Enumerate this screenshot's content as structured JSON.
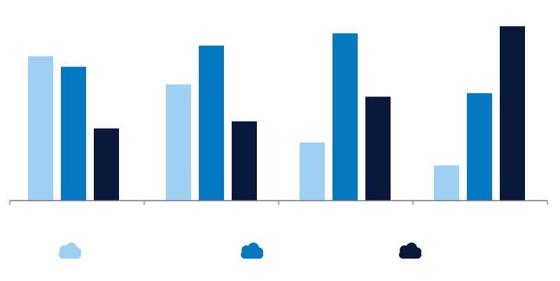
{
  "chart_data": {
    "type": "bar",
    "categories": [
      "",
      "",
      "",
      ""
    ],
    "series": [
      {
        "color": "#9dd0f2",
        "values": [
          82,
          66,
          33,
          20
        ]
      },
      {
        "color": "#0479c1",
        "values": [
          76,
          88,
          95,
          61
        ]
      },
      {
        "color": "#09183a",
        "values": [
          41,
          45,
          59,
          99
        ]
      }
    ],
    "ylim": [
      0,
      100
    ],
    "axis_color": "#6b7280",
    "grid": false,
    "legend_position": "bottom",
    "legend_icon": "cloud-icon"
  }
}
